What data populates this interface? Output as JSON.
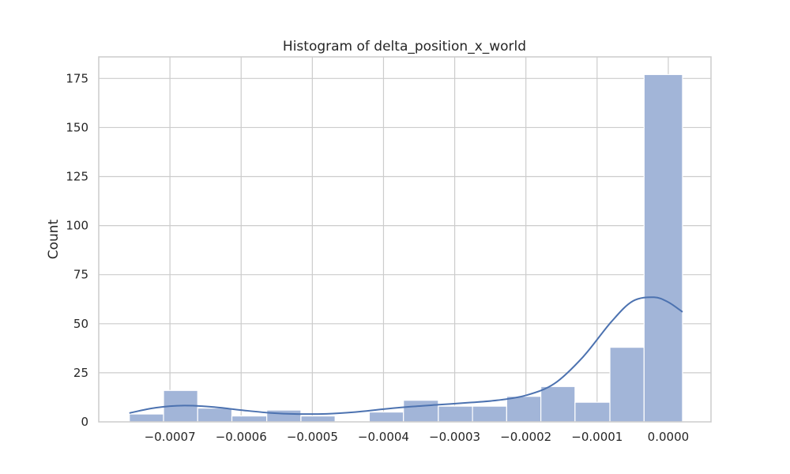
{
  "chart_data": {
    "type": "bar",
    "title": "Histogram of delta_position_x_world",
    "xlabel": "",
    "ylabel": "Count",
    "xlim": [
      -0.0008,
      6e-05
    ],
    "ylim": [
      0,
      186
    ],
    "grid": true,
    "bins": [
      {
        "x0": -0.000757,
        "x1": -0.000709,
        "count": 4
      },
      {
        "x0": -0.000709,
        "x1": -0.000661,
        "count": 16
      },
      {
        "x0": -0.000661,
        "x1": -0.000613,
        "count": 7
      },
      {
        "x0": -0.000613,
        "x1": -0.000564,
        "count": 3
      },
      {
        "x0": -0.000564,
        "x1": -0.000516,
        "count": 6
      },
      {
        "x0": -0.000516,
        "x1": -0.000468,
        "count": 3
      },
      {
        "x0": -0.000468,
        "x1": -0.00042,
        "count": 0
      },
      {
        "x0": -0.00042,
        "x1": -0.000372,
        "count": 5
      },
      {
        "x0": -0.000372,
        "x1": -0.000323,
        "count": 11
      },
      {
        "x0": -0.000323,
        "x1": -0.000275,
        "count": 8
      },
      {
        "x0": -0.000275,
        "x1": -0.000227,
        "count": 8
      },
      {
        "x0": -0.000227,
        "x1": -0.000179,
        "count": 13
      },
      {
        "x0": -0.000179,
        "x1": -0.000131,
        "count": 18
      },
      {
        "x0": -0.000131,
        "x1": -8.2e-05,
        "count": 10
      },
      {
        "x0": -8.2e-05,
        "x1": -3.4e-05,
        "count": 38
      },
      {
        "x0": -3.4e-05,
        "x1": 2e-05,
        "count": 177
      }
    ],
    "kde": {
      "x": [
        -0.000757,
        -0.00072,
        -0.00068,
        -0.00064,
        -0.0006,
        -0.00056,
        -0.00052,
        -0.00048,
        -0.00044,
        -0.0004,
        -0.00036,
        -0.00032,
        -0.00028,
        -0.00024,
        -0.0002,
        -0.00016,
        -0.00012,
        -8e-05,
        -5e-05,
        -2e-05,
        0.0,
        2e-05
      ],
      "y": [
        4.5,
        7.2,
        8.3,
        7.6,
        6.0,
        4.6,
        4.0,
        4.1,
        5.0,
        6.5,
        7.8,
        8.8,
        9.8,
        11.0,
        13.5,
        19.5,
        33.0,
        51.0,
        61.5,
        63.5,
        61.0,
        56.0
      ]
    },
    "x_ticks": [
      {
        "value": -0.0007,
        "label": "−0.0007"
      },
      {
        "value": -0.0006,
        "label": "−0.0006"
      },
      {
        "value": -0.0005,
        "label": "−0.0005"
      },
      {
        "value": -0.0004,
        "label": "−0.0004"
      },
      {
        "value": -0.0003,
        "label": "−0.0003"
      },
      {
        "value": -0.0002,
        "label": "−0.0002"
      },
      {
        "value": -0.0001,
        "label": "−0.0001"
      },
      {
        "value": 0.0,
        "label": "0.0000"
      }
    ],
    "y_ticks": [
      {
        "value": 0,
        "label": "0"
      },
      {
        "value": 25,
        "label": "25"
      },
      {
        "value": 50,
        "label": "50"
      },
      {
        "value": 75,
        "label": "75"
      },
      {
        "value": 100,
        "label": "100"
      },
      {
        "value": 125,
        "label": "125"
      },
      {
        "value": 150,
        "label": "150"
      },
      {
        "value": 175,
        "label": "175"
      }
    ],
    "colors": {
      "bar_fill": "#a2b5d8",
      "kde_line": "#4c72b0",
      "grid": "#cccccc"
    }
  }
}
